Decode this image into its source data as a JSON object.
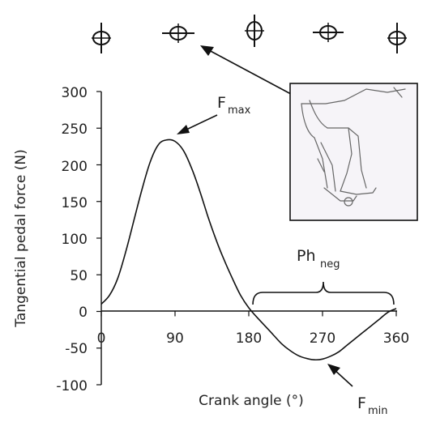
{
  "chart_data": {
    "type": "line",
    "xlabel": "Crank angle (°)",
    "ylabel": "Tangential pedal force (N)",
    "xlim": [
      0,
      360
    ],
    "ylim": [
      -100,
      300
    ],
    "x_ticks": [
      "0",
      "90",
      "180",
      "270",
      "360"
    ],
    "y_ticks": [
      "300",
      "250",
      "200",
      "150",
      "100",
      "50",
      "0",
      "-50",
      "-100"
    ],
    "grid": false,
    "series": [
      {
        "color": "#111111",
        "x": [
          0,
          10,
          20,
          30,
          40,
          50,
          60,
          70,
          80,
          90,
          100,
          110,
          120,
          130,
          140,
          150,
          160,
          170,
          180,
          190,
          200,
          210,
          220,
          230,
          240,
          250,
          260,
          270,
          280,
          290,
          300,
          310,
          320,
          330,
          340,
          350,
          360
        ],
        "y": [
          10,
          22,
          45,
          82,
          125,
          168,
          205,
          228,
          234,
          232,
          220,
          196,
          165,
          130,
          98,
          70,
          45,
          22,
          5,
          -8,
          -20,
          -32,
          -44,
          -53,
          -60,
          -64,
          -66,
          -65,
          -61,
          -55,
          -46,
          -37,
          -28,
          -19,
          -10,
          -1,
          4
        ]
      }
    ],
    "annotations": {
      "fmax_main": "F",
      "fmax_sub": "max",
      "fmin_main": "F",
      "fmin_sub": "min",
      "phneg_main": "Ph",
      "phneg_sub": "neg"
    },
    "phneg_range": [
      185,
      357
    ]
  }
}
